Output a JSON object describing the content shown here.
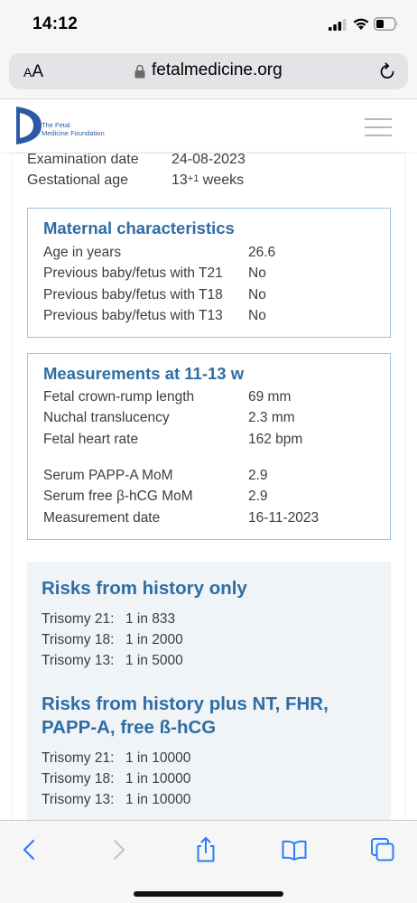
{
  "status_bar": {
    "time": "14:12"
  },
  "browser": {
    "aa_small": "A",
    "aa_large": "A",
    "url": "fetalmedicine.org"
  },
  "site": {
    "logo_line1": "The Fetal",
    "logo_line2": "Medicine Foundation",
    "brand_color": "#2b5aa6"
  },
  "exam": {
    "date_label": "Examination date",
    "date_value": "24-08-2023",
    "ga_label": "Gestational age",
    "ga_weeks": "13",
    "ga_sup": "+1",
    "ga_unit": " weeks"
  },
  "maternal": {
    "title": "Maternal characteristics",
    "rows": [
      {
        "label": "Age in years",
        "value": "26.6"
      },
      {
        "label": "Previous baby/fetus with T21",
        "value": "No"
      },
      {
        "label": "Previous baby/fetus with T18",
        "value": "No"
      },
      {
        "label": "Previous baby/fetus with T13",
        "value": "No"
      }
    ]
  },
  "measurements": {
    "title": "Measurements at 11-13 w",
    "rows": [
      {
        "label": "Fetal crown-rump length",
        "value": "69 mm"
      },
      {
        "label": "Nuchal translucency",
        "value": "2.3 mm"
      },
      {
        "label": "Fetal heart rate",
        "value": "162 bpm"
      },
      {
        "label": "Serum PAPP-A MoM",
        "value": "2.9"
      },
      {
        "label": "Serum free β-hCG MoM",
        "value": "2.9"
      },
      {
        "label": "Measurement date",
        "value": "16-11-2023"
      }
    ]
  },
  "risks_history": {
    "title": "Risks from history only",
    "rows": [
      {
        "label": "Trisomy 21:",
        "value": "1 in 833"
      },
      {
        "label": "Trisomy 18:",
        "value": "1 in 2000"
      },
      {
        "label": "Trisomy 13:",
        "value": "1 in 5000"
      }
    ]
  },
  "risks_combined": {
    "title_line1": "Risks from history plus NT, FHR,",
    "title_line2": "PAPP-A, free ß-hCG",
    "rows": [
      {
        "label": "Trisomy 21:",
        "value": "1 in 10000"
      },
      {
        "label": "Trisomy 18:",
        "value": "1 in 10000"
      },
      {
        "label": "Trisomy 13:",
        "value": "1 in 10000"
      }
    ]
  },
  "colors": {
    "heading_blue": "#2e6da4",
    "box_border": "#9fc2dd",
    "risk_panel_bg": "#f1f4f7",
    "ios_blue": "#2f7cf6"
  },
  "icons": {
    "signal": "cellular-signal-icon",
    "wifi": "wifi-icon",
    "battery": "battery-icon",
    "lock": "lock-icon",
    "reload": "reload-icon",
    "menu": "hamburger-menu-icon",
    "back": "chevron-left-icon",
    "forward": "chevron-right-icon",
    "share": "share-icon",
    "bookmarks": "book-icon",
    "tabs": "tabs-icon"
  }
}
